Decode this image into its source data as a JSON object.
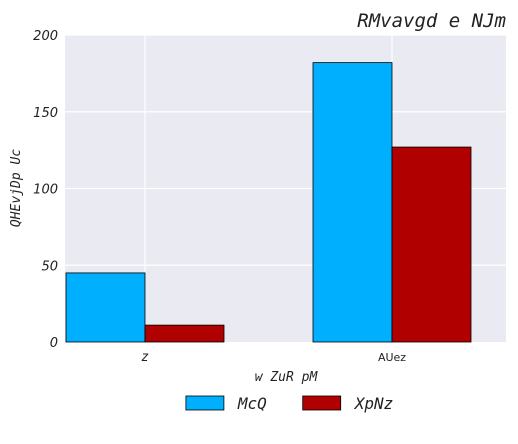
{
  "chart_data": {
    "type": "bar",
    "title": "RMvavgd e NJm",
    "xlabel": "w ZuR  pM",
    "ylabel": "QHEvjDp  Uc",
    "categories": [
      "z",
      "AUez"
    ],
    "series": [
      {
        "name": "McQ",
        "values": [
          45,
          182
        ],
        "color": "#00b0ff"
      },
      {
        "name": "XpNz",
        "values": [
          11,
          127
        ],
        "color": "#b00000"
      }
    ],
    "ylim": [
      0,
      200
    ],
    "yticks": [
      0,
      50,
      100,
      150,
      200
    ],
    "grid": true,
    "legend_position": "bottom-center",
    "plot_background": "#eaeaf2"
  }
}
